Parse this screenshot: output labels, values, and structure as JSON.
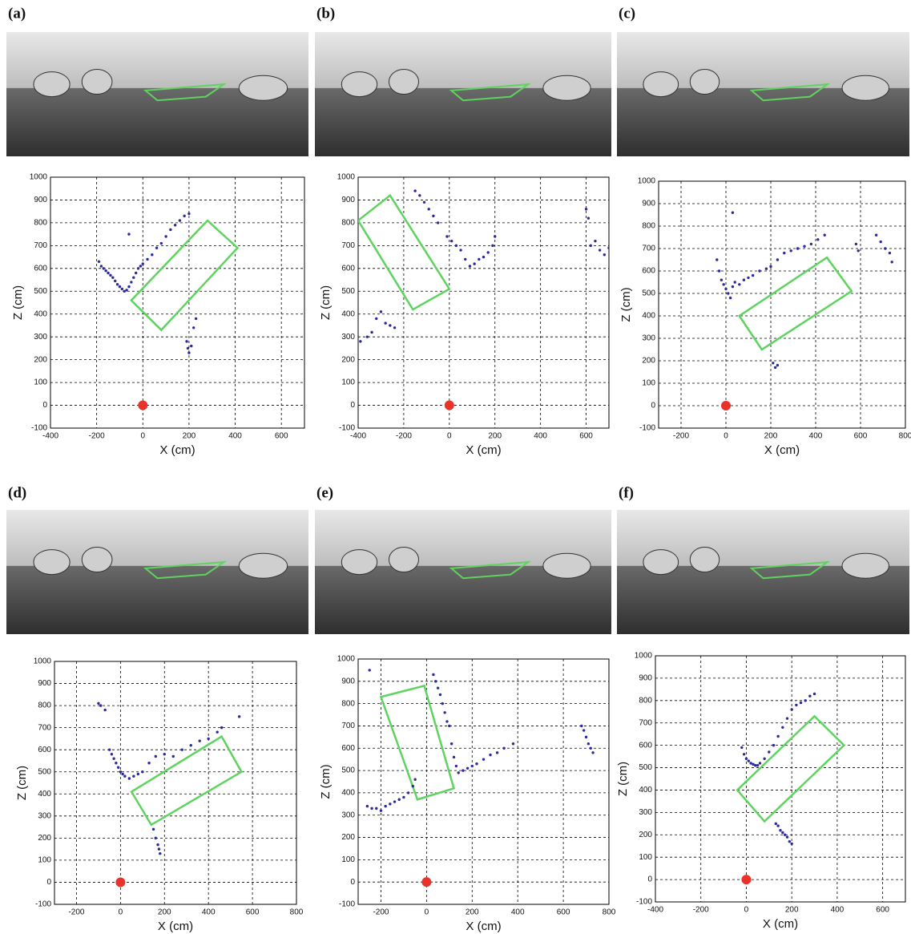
{
  "chart_data": [
    {
      "type": "scatter",
      "label": "(a)",
      "xlabel": "X (cm)",
      "ylabel": "Z (cm)",
      "xlim": [
        -400,
        700
      ],
      "ylim": [
        -100,
        1000
      ],
      "xticks": [
        -400,
        -200,
        0,
        200,
        400,
        600
      ],
      "yticks": [
        -100,
        0,
        100,
        200,
        300,
        400,
        500,
        600,
        700,
        800,
        900,
        1000
      ],
      "grid": true,
      "series": [
        {
          "color": "#2a2a9c",
          "x": [
            -190,
            -180,
            -170,
            -160,
            -150,
            -140,
            -130,
            -120,
            -110,
            -100,
            -90,
            -80,
            -70,
            -60,
            -50,
            -40,
            -30,
            -20,
            -10,
            0,
            20,
            40,
            60,
            80,
            100,
            120,
            140,
            160,
            180,
            200,
            -60,
            190,
            195,
            200,
            210,
            220,
            230
          ],
          "values": [
            630,
            610,
            600,
            590,
            580,
            570,
            560,
            545,
            530,
            520,
            510,
            500,
            505,
            520,
            540,
            560,
            580,
            600,
            610,
            620,
            640,
            660,
            690,
            710,
            740,
            770,
            790,
            810,
            830,
            840,
            750,
            280,
            250,
            230,
            260,
            340,
            380
          ]
        }
      ],
      "slot": {
        "color": "#5fd35f",
        "x": [
          -50,
          80,
          410,
          280
        ],
        "z": [
          460,
          330,
          690,
          810
        ]
      },
      "camera": {
        "color": "#e8332a",
        "x": 0,
        "z": 0
      }
    },
    {
      "type": "scatter",
      "label": "(b)",
      "xlabel": "X (cm)",
      "ylabel": "Z (cm)",
      "xlim": [
        -400,
        700
      ],
      "ylim": [
        -100,
        1000
      ],
      "xticks": [
        -400,
        -200,
        0,
        200,
        400,
        600
      ],
      "yticks": [
        -100,
        0,
        100,
        200,
        300,
        400,
        500,
        600,
        700,
        800,
        900,
        1000
      ],
      "grid": true,
      "series": [
        {
          "color": "#2a2a9c",
          "x": [
            -390,
            -360,
            -340,
            -320,
            -300,
            -280,
            -260,
            -240,
            -150,
            -130,
            -110,
            -90,
            -70,
            -50,
            -10,
            10,
            30,
            50,
            70,
            90,
            110,
            130,
            150,
            170,
            190,
            200,
            600,
            610,
            620,
            640,
            660,
            680,
            700
          ],
          "values": [
            280,
            300,
            320,
            380,
            410,
            360,
            350,
            340,
            940,
            920,
            890,
            860,
            830,
            800,
            740,
            720,
            700,
            680,
            640,
            610,
            620,
            640,
            650,
            670,
            700,
            740,
            860,
            820,
            700,
            720,
            680,
            660,
            690
          ]
        }
      ],
      "slot": {
        "color": "#5fd35f",
        "x": [
          -400,
          -160,
          0,
          -260
        ],
        "z": [
          810,
          420,
          510,
          920
        ]
      },
      "camera": {
        "color": "#e8332a",
        "x": 0,
        "z": 0
      }
    },
    {
      "type": "scatter",
      "label": "(c)",
      "xlabel": "X (cm)",
      "ylabel": "Z (cm)",
      "xlim": [
        -300,
        800
      ],
      "ylim": [
        -100,
        1000
      ],
      "xticks": [
        -200,
        0,
        200,
        400,
        600,
        800
      ],
      "yticks": [
        -100,
        0,
        100,
        200,
        300,
        400,
        500,
        600,
        700,
        800,
        900,
        1000
      ],
      "grid": true,
      "series": [
        {
          "color": "#2a2a9c",
          "x": [
            -40,
            -30,
            -20,
            -10,
            0,
            10,
            20,
            30,
            40,
            60,
            80,
            100,
            120,
            150,
            180,
            200,
            230,
            260,
            290,
            320,
            350,
            380,
            410,
            440,
            30,
            210,
            220,
            230,
            580,
            590,
            670,
            690,
            710,
            730,
            740
          ],
          "values": [
            650,
            600,
            560,
            540,
            520,
            500,
            480,
            530,
            550,
            540,
            560,
            570,
            580,
            600,
            610,
            620,
            650,
            680,
            690,
            700,
            710,
            720,
            740,
            760,
            860,
            190,
            170,
            180,
            720,
            690,
            760,
            730,
            700,
            680,
            640
          ]
        }
      ],
      "slot": {
        "color": "#5fd35f",
        "x": [
          60,
          160,
          560,
          450
        ],
        "z": [
          400,
          250,
          510,
          660
        ]
      },
      "camera": {
        "color": "#e8332a",
        "x": 0,
        "z": 0
      }
    },
    {
      "type": "scatter",
      "label": "(d)",
      "xlabel": "X (cm)",
      "ylabel": "Z (cm)",
      "xlim": [
        -300,
        800
      ],
      "ylim": [
        -100,
        1000
      ],
      "xticks": [
        -200,
        0,
        200,
        400,
        600,
        800
      ],
      "yticks": [
        -100,
        0,
        100,
        200,
        300,
        400,
        500,
        600,
        700,
        800,
        900,
        1000
      ],
      "grid": true,
      "series": [
        {
          "color": "#2a2a9c",
          "x": [
            -100,
            -90,
            -70,
            -50,
            -40,
            -30,
            -20,
            -10,
            0,
            10,
            20,
            40,
            60,
            80,
            100,
            130,
            160,
            200,
            240,
            280,
            320,
            360,
            400,
            440,
            460,
            150,
            160,
            170,
            175,
            180,
            540
          ],
          "values": [
            810,
            800,
            780,
            600,
            580,
            560,
            540,
            520,
            500,
            490,
            480,
            470,
            480,
            490,
            500,
            540,
            570,
            580,
            570,
            600,
            620,
            640,
            650,
            680,
            700,
            240,
            200,
            170,
            150,
            130,
            750
          ]
        }
      ],
      "slot": {
        "color": "#5fd35f",
        "x": [
          50,
          140,
          550,
          460
        ],
        "z": [
          410,
          260,
          500,
          660
        ]
      },
      "camera": {
        "color": "#e8332a",
        "x": 0,
        "z": 0
      }
    },
    {
      "type": "scatter",
      "label": "(e)",
      "xlabel": "X (cm)",
      "ylabel": "Z (cm)",
      "xlim": [
        -300,
        800
      ],
      "ylim": [
        -100,
        1000
      ],
      "xticks": [
        -200,
        0,
        200,
        400,
        600,
        800
      ],
      "yticks": [
        -100,
        0,
        100,
        200,
        300,
        400,
        500,
        600,
        700,
        800,
        900,
        1000
      ],
      "grid": true,
      "series": [
        {
          "color": "#2a2a9c",
          "x": [
            -250,
            -260,
            -240,
            -220,
            -200,
            -180,
            -160,
            -140,
            -120,
            -100,
            -80,
            -60,
            -50,
            30,
            40,
            50,
            60,
            70,
            80,
            90,
            100,
            110,
            120,
            130,
            140,
            160,
            180,
            200,
            220,
            250,
            280,
            310,
            340,
            380,
            680,
            690,
            700,
            710,
            720,
            730
          ],
          "values": [
            950,
            340,
            330,
            330,
            320,
            340,
            350,
            360,
            370,
            380,
            400,
            430,
            460,
            930,
            900,
            870,
            840,
            800,
            760,
            720,
            700,
            620,
            560,
            520,
            490,
            500,
            510,
            520,
            530,
            550,
            570,
            580,
            600,
            620,
            700,
            680,
            650,
            620,
            600,
            580
          ]
        }
      ],
      "slot": {
        "color": "#5fd35f",
        "x": [
          -40,
          120,
          -10,
          -200
        ],
        "z": [
          370,
          420,
          880,
          830
        ]
      },
      "camera": {
        "color": "#e8332a",
        "x": 0,
        "z": 0
      }
    },
    {
      "type": "scatter",
      "label": "(f)",
      "xlabel": "X (cm)",
      "ylabel": "Z (cm)",
      "xlim": [
        -400,
        700
      ],
      "ylim": [
        -100,
        1000
      ],
      "xticks": [
        -400,
        -200,
        0,
        200,
        400,
        600
      ],
      "yticks": [
        -100,
        0,
        100,
        200,
        300,
        400,
        500,
        600,
        700,
        800,
        900,
        1000
      ],
      "grid": true,
      "series": [
        {
          "color": "#2a2a9c",
          "x": [
            -20,
            -10,
            0,
            10,
            20,
            30,
            40,
            50,
            60,
            80,
            100,
            120,
            140,
            160,
            180,
            200,
            220,
            240,
            260,
            280,
            300,
            130,
            140,
            150,
            160,
            170,
            180,
            190,
            200
          ],
          "values": [
            590,
            560,
            540,
            530,
            520,
            515,
            510,
            510,
            520,
            540,
            570,
            600,
            640,
            680,
            720,
            760,
            780,
            790,
            800,
            820,
            830,
            250,
            240,
            220,
            210,
            200,
            190,
            170,
            160
          ]
        }
      ],
      "slot": {
        "color": "#5fd35f",
        "x": [
          -40,
          80,
          430,
          300
        ],
        "z": [
          400,
          260,
          600,
          730
        ]
      },
      "camera": {
        "color": "#e8332a",
        "x": 0,
        "z": 0
      }
    }
  ]
}
